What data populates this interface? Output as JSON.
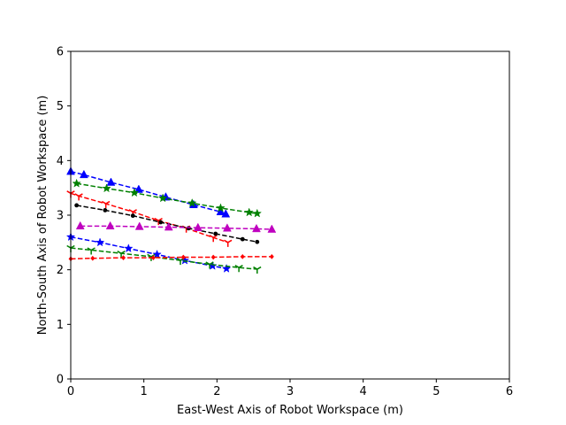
{
  "chart_data": {
    "type": "line",
    "xlabel": "East-West Axis of Robot Workspace (m)",
    "ylabel": "North-South Axis of Robot Workspace (m)",
    "xlim": [
      0,
      6
    ],
    "ylim": [
      0,
      6
    ],
    "xticks": [
      "0",
      "1",
      "2",
      "3",
      "4",
      "5",
      "6"
    ],
    "yticks": [
      "0",
      "1",
      "2",
      "3",
      "4",
      "5",
      "6"
    ],
    "grid": false,
    "legend": "none",
    "series": [
      {
        "color": "#0000ff",
        "marker": "triangle-up",
        "line": "dashed",
        "x": [
          0.0,
          0.18,
          0.55,
          0.93,
          1.3,
          1.68,
          2.05,
          2.12
        ],
        "y": [
          3.8,
          3.74,
          3.6,
          3.47,
          3.33,
          3.19,
          3.06,
          3.02
        ]
      },
      {
        "color": "#008000",
        "marker": "star",
        "line": "dashed",
        "x": [
          0.08,
          0.49,
          0.87,
          1.26,
          1.66,
          2.05,
          2.44,
          2.55
        ],
        "y": [
          3.58,
          3.49,
          3.41,
          3.31,
          3.22,
          3.13,
          3.05,
          3.03
        ]
      },
      {
        "color": "#ff0000",
        "marker": "tri-down",
        "line": "dashed",
        "x": [
          0.0,
          0.11,
          0.48,
          0.85,
          1.2,
          1.58,
          1.95,
          2.15
        ],
        "y": [
          3.4,
          3.35,
          3.21,
          3.06,
          2.9,
          2.76,
          2.59,
          2.5
        ]
      },
      {
        "color": "#000000",
        "marker": "point",
        "line": "dashed",
        "x": [
          0.08,
          0.47,
          0.85,
          1.23,
          1.61,
          1.98,
          2.35,
          2.55
        ],
        "y": [
          3.18,
          3.09,
          2.99,
          2.87,
          2.76,
          2.66,
          2.56,
          2.51
        ]
      },
      {
        "color": "#bf00bf",
        "marker": "triangle-up",
        "line": "dashed",
        "x": [
          0.13,
          0.54,
          0.94,
          1.34,
          1.74,
          2.14,
          2.54,
          2.75
        ],
        "y": [
          2.8,
          2.8,
          2.79,
          2.78,
          2.77,
          2.76,
          2.75,
          2.74
        ]
      },
      {
        "color": "#0000ff",
        "marker": "star",
        "line": "dashed",
        "x": [
          0.0,
          0.4,
          0.79,
          1.18,
          1.56,
          1.94,
          2.13
        ],
        "y": [
          2.6,
          2.5,
          2.39,
          2.28,
          2.17,
          2.07,
          2.02
        ]
      },
      {
        "color": "#008000",
        "marker": "tri-down",
        "line": "dashed",
        "x": [
          0.0,
          0.28,
          0.69,
          1.1,
          1.5,
          1.9,
          2.3,
          2.55
        ],
        "y": [
          2.4,
          2.36,
          2.3,
          2.24,
          2.17,
          2.1,
          2.04,
          2.01
        ]
      },
      {
        "color": "#ff0000",
        "marker": "diamond",
        "line": "dashed",
        "x": [
          0.0,
          0.3,
          0.72,
          1.13,
          1.54,
          1.95,
          2.35,
          2.75
        ],
        "y": [
          2.2,
          2.21,
          2.22,
          2.22,
          2.23,
          2.23,
          2.24,
          2.24
        ]
      }
    ]
  }
}
